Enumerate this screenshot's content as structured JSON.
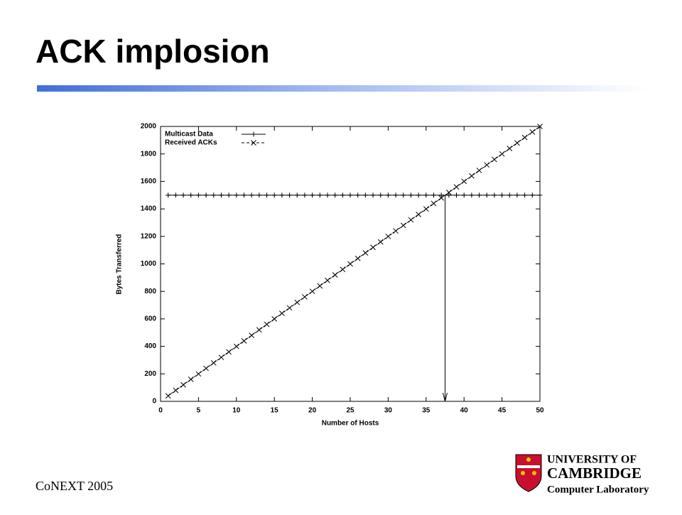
{
  "slide": {
    "title": "ACK implosion",
    "footer": "CoNEXT 2005",
    "logo": [
      "UNIVERSITY OF",
      "CAMBRIDGE",
      "Computer Laboratory"
    ]
  },
  "chart_data": {
    "type": "line",
    "xlabel": "Number of Hosts",
    "ylabel": "Bytes Transferred",
    "x": [
      1,
      2,
      3,
      4,
      5,
      6,
      7,
      8,
      9,
      10,
      11,
      12,
      13,
      14,
      15,
      16,
      17,
      18,
      19,
      20,
      21,
      22,
      23,
      24,
      25,
      26,
      27,
      28,
      29,
      30,
      31,
      32,
      33,
      34,
      35,
      36,
      37,
      38,
      39,
      40,
      41,
      42,
      43,
      44,
      45,
      46,
      47,
      48,
      49,
      50
    ],
    "series": [
      {
        "name": "Multicast Data",
        "color": "#000000",
        "marker": "plus",
        "line_style": "solid",
        "values": [
          1500,
          1500,
          1500,
          1500,
          1500,
          1500,
          1500,
          1500,
          1500,
          1500,
          1500,
          1500,
          1500,
          1500,
          1500,
          1500,
          1500,
          1500,
          1500,
          1500,
          1500,
          1500,
          1500,
          1500,
          1500,
          1500,
          1500,
          1500,
          1500,
          1500,
          1500,
          1500,
          1500,
          1500,
          1500,
          1500,
          1500,
          1500,
          1500,
          1500,
          1500,
          1500,
          1500,
          1500,
          1500,
          1500,
          1500,
          1500,
          1500,
          1500
        ]
      },
      {
        "name": "Received ACKs",
        "color": "#000000",
        "marker": "x",
        "line_style": "dashed",
        "values": [
          40,
          80,
          120,
          160,
          200,
          240,
          280,
          320,
          360,
          400,
          440,
          480,
          520,
          560,
          600,
          640,
          680,
          720,
          760,
          800,
          840,
          880,
          920,
          960,
          1000,
          1040,
          1080,
          1120,
          1160,
          1200,
          1240,
          1280,
          1320,
          1360,
          1400,
          1440,
          1480,
          1520,
          1560,
          1600,
          1640,
          1680,
          1720,
          1760,
          1800,
          1840,
          1880,
          1920,
          1960,
          2000
        ]
      }
    ],
    "annotation_arrow": {
      "x": 37.5,
      "from": 1500,
      "to": 0
    },
    "xlim": [
      0,
      50
    ],
    "xticks": [
      0,
      5,
      10,
      15,
      20,
      25,
      30,
      35,
      40,
      45,
      50
    ],
    "ylim": [
      0,
      2000
    ],
    "yticks": [
      0,
      200,
      400,
      600,
      800,
      1000,
      1200,
      1400,
      1600,
      1800,
      2000
    ],
    "legend": "top-left",
    "grid": false
  }
}
